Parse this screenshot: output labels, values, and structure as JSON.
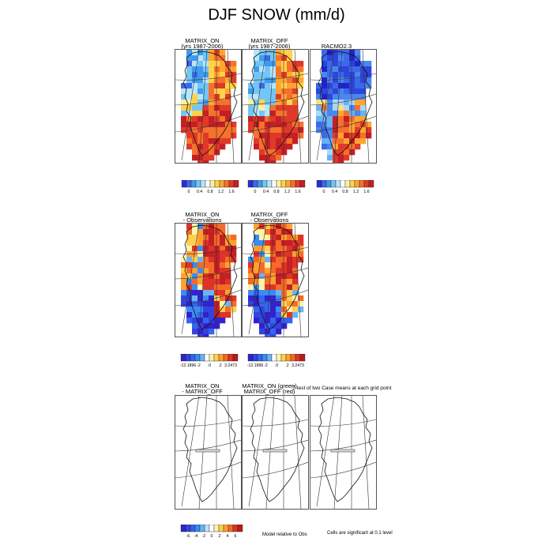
{
  "title": "DJF SNOW (mm/d)",
  "row1": {
    "panels": [
      {
        "title": "MATRIX_ON\n(yrs 1987-2006)",
        "style": "warm"
      },
      {
        "title": "MATRIX_OFF\n(yrs 1987-2006)",
        "style": "warm"
      },
      {
        "title": "RACMO2.3",
        "style": "cool"
      }
    ],
    "colorbar": {
      "colors": [
        "#2c2cd8",
        "#3d67e8",
        "#3f9af0",
        "#72c6f5",
        "#b7e6fa",
        "#ffffff",
        "#fff0a0",
        "#ffd24a",
        "#ffa631",
        "#f4722c",
        "#df3a29",
        "#c41f24"
      ],
      "labels": [
        "0",
        "0.4",
        "0.8",
        "1.2",
        "1.6"
      ]
    }
  },
  "row2": {
    "panels": [
      {
        "title": "MATRIX_ON\n- Observations",
        "style": "diff"
      },
      {
        "title": "MATRIX_OFF\n- Observations",
        "style": "diff"
      }
    ],
    "colorbar": {
      "colors": [
        "#3322cc",
        "#3344dd",
        "#3366ee",
        "#3a8cf2",
        "#6ab4f6",
        "#ffffff",
        "#fff3a8",
        "#ffd050",
        "#ffa030",
        "#f46a28",
        "#df3328",
        "#bb1a1a"
      ],
      "labels": [
        "-12.1896",
        "-2",
        ".0",
        ".2",
        "3.2473"
      ]
    }
  },
  "row3": {
    "panels": [
      {
        "title": "MATRIX_ON\n- MATRIX_OFF"
      },
      {
        "title": "MATRIX_ON (green)\nMATRIX_OFF (red)"
      },
      {
        "title": ""
      }
    ],
    "side_title": "T-test of two Case means at each grid point",
    "colorbar": {
      "colors": [
        "#3322cc",
        "#3344dd",
        "#3366ee",
        "#3a8cf2",
        "#6ab4f6",
        "#b8e2fa",
        "#ffffff",
        "#fff3a8",
        "#ffd050",
        "#ffa030",
        "#f46a28",
        "#df3328",
        "#bb1a1a"
      ],
      "labels": [
        "-6",
        "-4",
        "-2",
        "0",
        "2",
        "4",
        "6"
      ]
    },
    "note_left": "Model relative to Obs",
    "note_right": "Cells are significant at 0.1 level"
  }
}
